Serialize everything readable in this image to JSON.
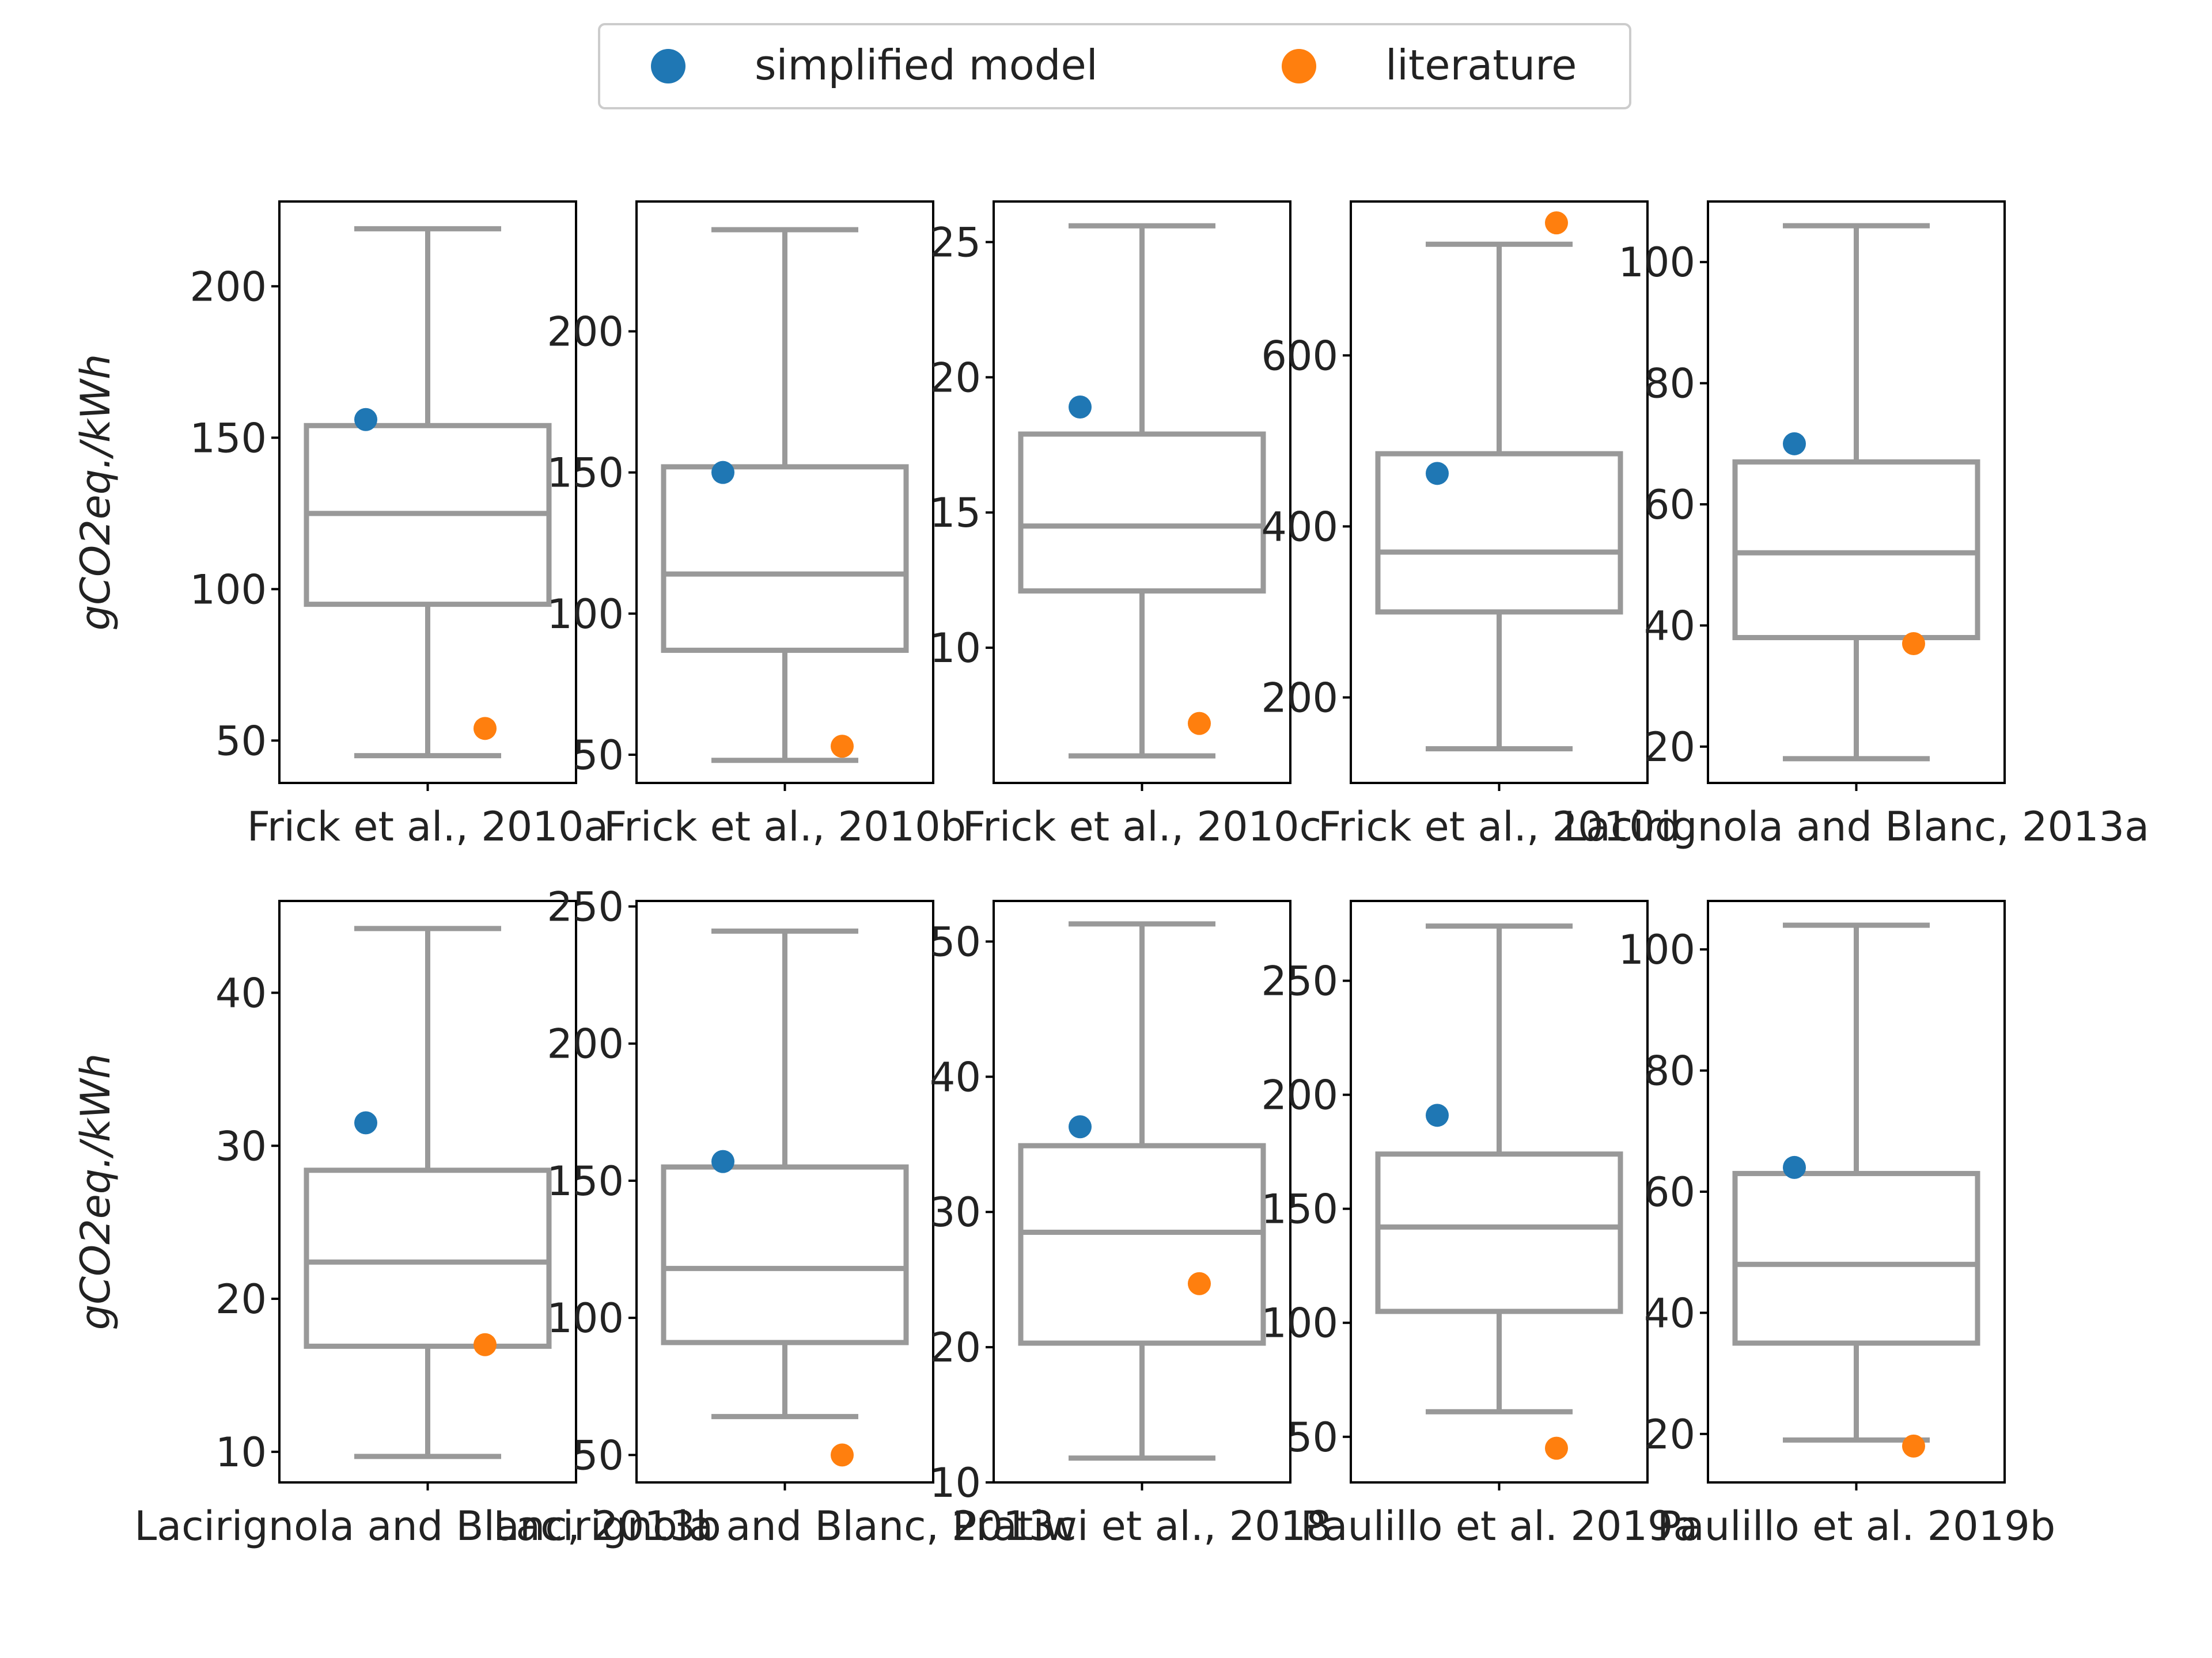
{
  "legend": {
    "items": [
      {
        "label": "simplified model",
        "color": "#1f77b4"
      },
      {
        "label": "literature",
        "color": "#ff7f0e"
      }
    ]
  },
  "box_color": "#999999",
  "chart_data": [
    {
      "type": "box",
      "category": "Frick et al., 2010a",
      "ylabel": "gCO2eq./kWh",
      "ylim": [
        36,
        228
      ],
      "yticks": [
        50,
        100,
        150,
        200
      ],
      "box": {
        "whisker_low": 45,
        "q1": 95,
        "median": 125,
        "q3": 154,
        "whisker_high": 219
      },
      "simplified_model": 156,
      "literature": 54
    },
    {
      "type": "box",
      "category": "Frick et al., 2010b",
      "ylabel": "",
      "ylim": [
        40,
        246
      ],
      "yticks": [
        50,
        100,
        150,
        200
      ],
      "box": {
        "whisker_low": 48,
        "q1": 87,
        "median": 114,
        "q3": 152,
        "whisker_high": 236
      },
      "simplified_model": 150,
      "literature": 53
    },
    {
      "type": "box",
      "category": "Frick et al., 2010c",
      "ylabel": "",
      "ylim": [
        5,
        26.5
      ],
      "yticks": [
        10,
        15,
        20,
        25
      ],
      "box": {
        "whisker_low": 6,
        "q1": 12.1,
        "median": 14.5,
        "q3": 17.9,
        "whisker_high": 25.6
      },
      "simplified_model": 18.9,
      "literature": 7.2
    },
    {
      "type": "box",
      "category": "Frick et al., 2010d",
      "ylabel": "",
      "ylim": [
        100,
        780
      ],
      "yticks": [
        200,
        400,
        600
      ],
      "box": {
        "whisker_low": 140,
        "q1": 300,
        "median": 370,
        "q3": 485,
        "whisker_high": 730
      },
      "simplified_model": 462,
      "literature": 755
    },
    {
      "type": "box",
      "category": "Lacirignola and Blanc, 2013a",
      "ylabel": "",
      "ylim": [
        14,
        110
      ],
      "yticks": [
        20,
        40,
        60,
        80,
        100
      ],
      "box": {
        "whisker_low": 18,
        "q1": 38,
        "median": 52,
        "q3": 67,
        "whisker_high": 106
      },
      "simplified_model": 70,
      "literature": 37
    },
    {
      "type": "box",
      "category": "Lacirignola and Blanc, 2013b",
      "ylabel": "gCO2eq./kWh",
      "ylim": [
        8,
        46
      ],
      "yticks": [
        10,
        20,
        30,
        40
      ],
      "box": {
        "whisker_low": 9.7,
        "q1": 16.9,
        "median": 22.4,
        "q3": 28.4,
        "whisker_high": 44.2
      },
      "simplified_model": 31.5,
      "literature": 17
    },
    {
      "type": "box",
      "category": "Lacirignola and Blanc, 2013c",
      "ylabel": "",
      "ylim": [
        40,
        252
      ],
      "yticks": [
        50,
        100,
        150,
        200,
        250
      ],
      "box": {
        "whisker_low": 64,
        "q1": 91,
        "median": 118,
        "q3": 155,
        "whisker_high": 241
      },
      "simplified_model": 157,
      "literature": 50
    },
    {
      "type": "box",
      "category": "Pratiwi et al., 2018",
      "ylabel": "",
      "ylim": [
        10,
        53
      ],
      "yticks": [
        10,
        20,
        30,
        40,
        50
      ],
      "box": {
        "whisker_low": 11.8,
        "q1": 20.3,
        "median": 28.5,
        "q3": 34.9,
        "whisker_high": 51.3
      },
      "simplified_model": 36.3,
      "literature": 24.7
    },
    {
      "type": "box",
      "category": "Paulillo et al. 2019a",
      "ylabel": "",
      "ylim": [
        30,
        285
      ],
      "yticks": [
        50,
        100,
        150,
        200,
        250
      ],
      "box": {
        "whisker_low": 61,
        "q1": 105,
        "median": 142,
        "q3": 174,
        "whisker_high": 274
      },
      "simplified_model": 191,
      "literature": 45
    },
    {
      "type": "box",
      "category": "Paulillo et al. 2019b",
      "ylabel": "",
      "ylim": [
        12,
        108
      ],
      "yticks": [
        20,
        40,
        60,
        80,
        100
      ],
      "box": {
        "whisker_low": 19,
        "q1": 35,
        "median": 48,
        "q3": 63,
        "whisker_high": 104
      },
      "simplified_model": 64,
      "literature": 18
    }
  ]
}
